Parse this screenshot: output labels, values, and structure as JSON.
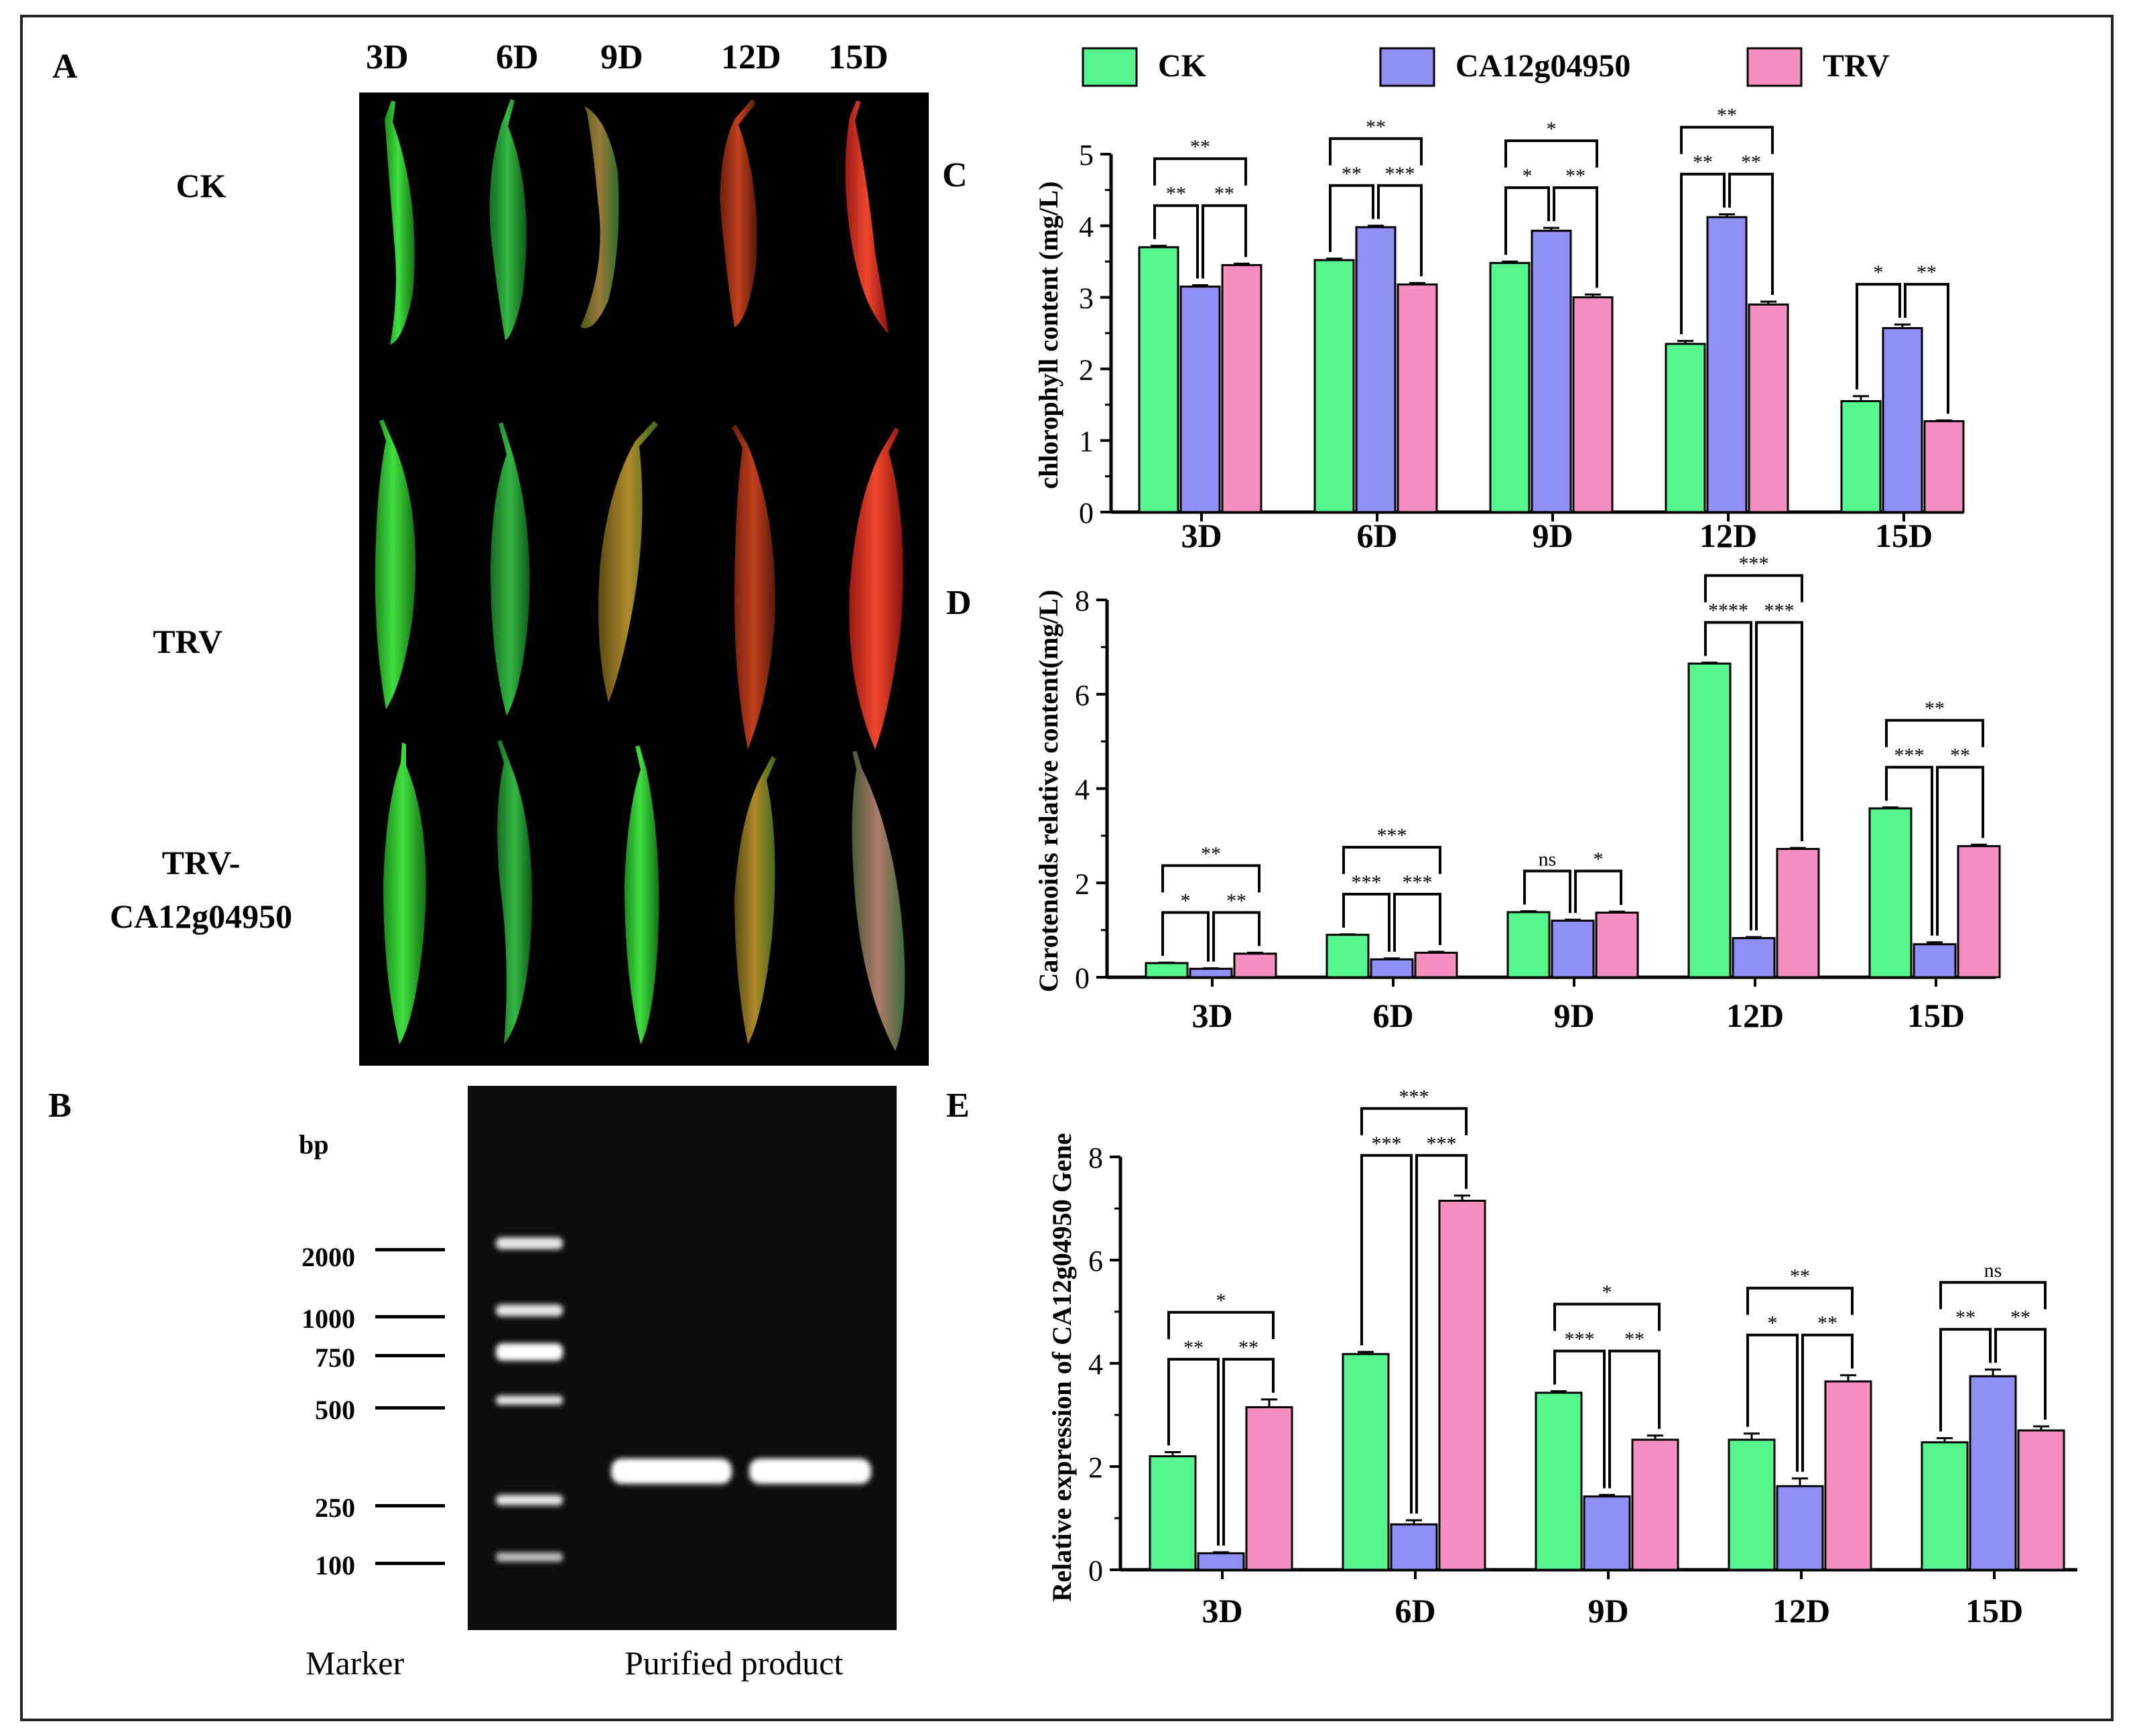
{
  "panels": {
    "A": "A",
    "B": "B",
    "C": "C",
    "D": "D",
    "E": "E"
  },
  "panel_a": {
    "days": [
      "3D",
      "6D",
      "9D",
      "12D",
      "15D"
    ],
    "rows": [
      "CK",
      "TRV",
      "TRV-",
      "CA12g04950"
    ]
  },
  "panel_b": {
    "bp_label": "bp",
    "bp_ladder": [
      "2000",
      "1000",
      "750",
      "500",
      "250",
      "100"
    ],
    "caption_marker": "Marker",
    "caption_product": "Purified product"
  },
  "legend": {
    "items": [
      {
        "name": "CK",
        "color": "#57f58e"
      },
      {
        "name": "CA12g04950",
        "color": "#8f8ff5"
      },
      {
        "name": "TRV",
        "color": "#f58fbf"
      }
    ]
  },
  "chart_data": [
    {
      "type": "bar",
      "panel": "C",
      "categories": [
        "3D",
        "6D",
        "9D",
        "12D",
        "15D"
      ],
      "ylabel": "chlorophyll content (mg/L)",
      "ylim": [
        0,
        5
      ],
      "yticks": [
        "0",
        "1",
        "2",
        "3",
        "4",
        "5"
      ],
      "series": [
        {
          "name": "CK",
          "values": [
            3.7,
            3.52,
            3.48,
            2.35,
            1.55
          ],
          "errors": [
            0.02,
            0.02,
            0.02,
            0.04,
            0.07
          ]
        },
        {
          "name": "CA12g04950",
          "values": [
            3.15,
            3.98,
            3.93,
            4.12,
            2.57
          ],
          "errors": [
            0.02,
            0.02,
            0.04,
            0.04,
            0.05
          ]
        },
        {
          "name": "TRV",
          "values": [
            3.45,
            3.18,
            3.0,
            2.9,
            1.27
          ],
          "errors": [
            0.02,
            0.02,
            0.04,
            0.04,
            0.01
          ]
        }
      ],
      "significance": [
        {
          "cat": 0,
          "top": "**",
          "left": "**",
          "right": "**"
        },
        {
          "cat": 1,
          "top": "**",
          "left": "**",
          "right": "***"
        },
        {
          "cat": 2,
          "top": "*",
          "left": "*",
          "right": "**"
        },
        {
          "cat": 3,
          "top": "**",
          "left": "**",
          "right": "**"
        },
        {
          "cat": 4,
          "top": "",
          "left": "*",
          "right": "**"
        }
      ]
    },
    {
      "type": "bar",
      "panel": "D",
      "categories": [
        "3D",
        "6D",
        "9D",
        "12D",
        "15D"
      ],
      "ylabel": "Carotenoids relative content(mg/L)",
      "ylim": [
        0,
        8
      ],
      "yticks": [
        "0",
        "2",
        "4",
        "6",
        "8"
      ],
      "series": [
        {
          "name": "CK",
          "values": [
            0.3,
            0.9,
            1.38,
            6.65,
            3.58
          ],
          "errors": [
            0.01,
            0.01,
            0.02,
            0.02,
            0.02
          ]
        },
        {
          "name": "CA12g04950",
          "values": [
            0.18,
            0.38,
            1.2,
            0.83,
            0.7
          ],
          "errors": [
            0.01,
            0.02,
            0.02,
            0.02,
            0.04
          ]
        },
        {
          "name": "TRV",
          "values": [
            0.5,
            0.52,
            1.37,
            2.72,
            2.78
          ],
          "errors": [
            0.02,
            0.02,
            0.02,
            0.02,
            0.03
          ]
        }
      ],
      "significance": [
        {
          "cat": 0,
          "top": "**",
          "left": "*",
          "right": "**"
        },
        {
          "cat": 1,
          "top": "***",
          "left": "***",
          "right": "***"
        },
        {
          "cat": 2,
          "top": "",
          "left": "ns",
          "right": "*"
        },
        {
          "cat": 3,
          "top": "***",
          "left": "****",
          "right": "***"
        },
        {
          "cat": 4,
          "top": "**",
          "left": "***",
          "right": "**"
        }
      ]
    },
    {
      "type": "bar",
      "panel": "E",
      "categories": [
        "3D",
        "6D",
        "9D",
        "12D",
        "15D"
      ],
      "ylabel": "Relative expression of CA12g04950 Gene",
      "ylim": [
        0,
        8
      ],
      "yticks": [
        "0",
        "2",
        "4",
        "6",
        "8"
      ],
      "series": [
        {
          "name": "CK",
          "values": [
            2.2,
            4.18,
            3.43,
            2.52,
            2.47
          ],
          "errors": [
            0.08,
            0.04,
            0.03,
            0.12,
            0.08
          ]
        },
        {
          "name": "CA12g04950",
          "values": [
            0.32,
            0.88,
            1.42,
            1.62,
            3.75
          ],
          "errors": [
            0.02,
            0.08,
            0.03,
            0.15,
            0.13
          ]
        },
        {
          "name": "TRV",
          "values": [
            3.15,
            7.15,
            2.52,
            3.65,
            2.7
          ],
          "errors": [
            0.15,
            0.1,
            0.08,
            0.12,
            0.08
          ]
        }
      ],
      "significance": [
        {
          "cat": 0,
          "top": "*",
          "left": "**",
          "right": "**"
        },
        {
          "cat": 1,
          "top": "***",
          "left": "***",
          "right": "***"
        },
        {
          "cat": 2,
          "top": "*",
          "left": "***",
          "right": "**"
        },
        {
          "cat": 3,
          "top": "**",
          "left": "*",
          "right": "**"
        },
        {
          "cat": 4,
          "top": "ns",
          "left": "**",
          "right": "**"
        }
      ]
    }
  ]
}
